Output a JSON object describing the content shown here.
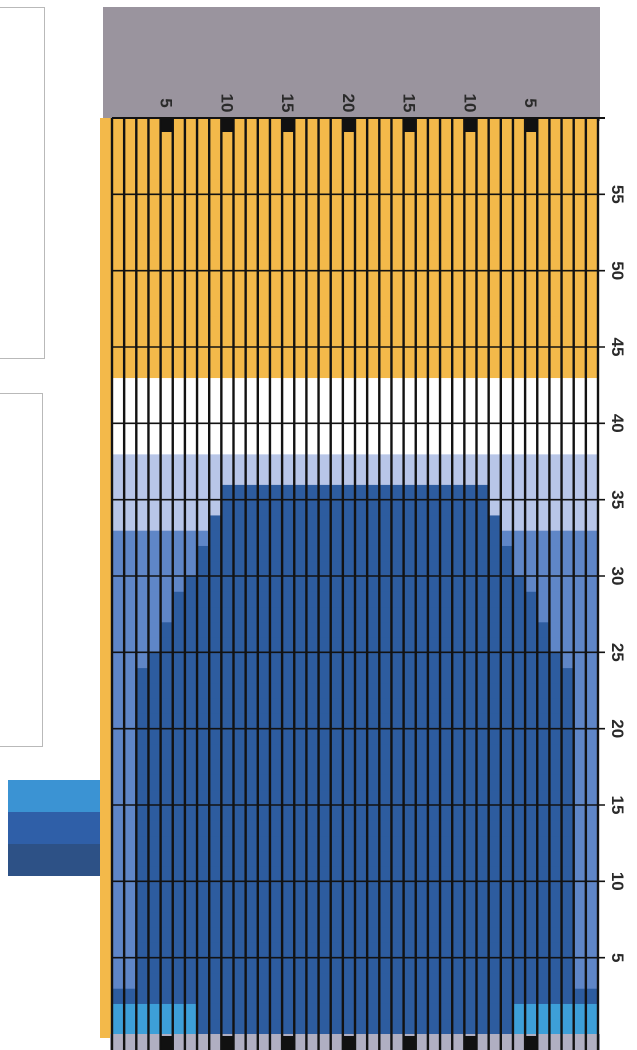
{
  "colors": {
    "frame": "#9a949e",
    "beige": "#f3b94a",
    "white": "#ffffff",
    "blue_pale": "#b8c6e8",
    "blue_mid": "#5f86c7",
    "blue_dark": "#2d5c9f",
    "blue_cyan": "#3d9fd8",
    "gridline": "#121212",
    "bottom_strip": "#b0afc2"
  },
  "legend": {
    "swatches": [
      {
        "color": "#3b93d3"
      },
      {
        "color": "#2f5fa8"
      },
      {
        "color": "#2d5186"
      }
    ]
  },
  "chart_data": {
    "type": "heatmap",
    "x_ticks": [
      "5",
      "10",
      "15",
      "20",
      "15",
      "10",
      "5"
    ],
    "y_ticks": [
      "5",
      "10",
      "15",
      "20",
      "25",
      "30",
      "35",
      "40",
      "45",
      "50",
      "55"
    ],
    "columns": 40,
    "rows": 60
  }
}
